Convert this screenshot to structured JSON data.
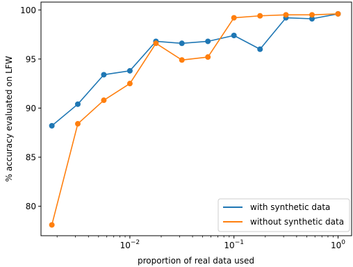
{
  "chart_data": {
    "type": "line",
    "title": "",
    "xlabel": "proportion of real data used",
    "ylabel": "% accuracy evaluated on LFW",
    "xscale": "log",
    "xlim": [
      0.0014,
      1.35
    ],
    "ylim": [
      77.0,
      100.8
    ],
    "grid": false,
    "legend_placement": "lower-right",
    "x_ticks": [
      {
        "value": 0.01,
        "base": "10",
        "exp": "−2"
      },
      {
        "value": 0.1,
        "base": "10",
        "exp": "−1"
      },
      {
        "value": 1,
        "base": "10",
        "exp": "0"
      }
    ],
    "y_ticks": [
      80,
      85,
      90,
      95,
      100
    ],
    "x": [
      0.00178,
      0.00316,
      0.00562,
      0.01,
      0.0178,
      0.0316,
      0.0562,
      0.1,
      0.178,
      0.316,
      0.562,
      1.0
    ],
    "series": [
      {
        "name": "with synthetic data",
        "color": "#1f77b4",
        "values": [
          88.2,
          90.4,
          93.4,
          93.8,
          96.8,
          96.6,
          96.8,
          97.4,
          96.0,
          99.2,
          99.1,
          99.6
        ]
      },
      {
        "name": "without synthetic data",
        "color": "#ff7f0e",
        "values": [
          78.1,
          88.4,
          90.8,
          92.5,
          96.6,
          94.9,
          95.2,
          99.2,
          99.4,
          99.5,
          99.5,
          99.6
        ]
      }
    ]
  }
}
